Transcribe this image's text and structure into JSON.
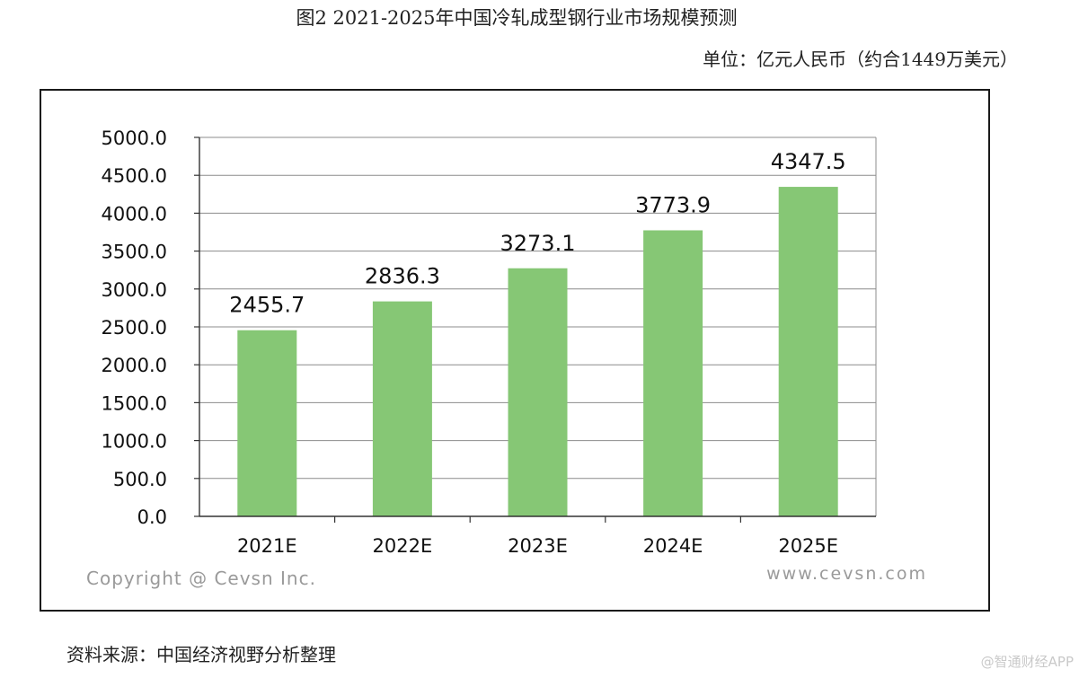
{
  "title": "图2 2021-2025年中国冷轧成型钢行业市场规模预测",
  "unit": "单位：亿元人民币（约合1449万美元）",
  "source": "资料来源：中国经济视野分析整理",
  "watermark": "@智通财经APP",
  "chart_data": {
    "type": "bar",
    "categories": [
      "2021E",
      "2022E",
      "2023E",
      "2024E",
      "2025E"
    ],
    "values": [
      2455.7,
      2836.3,
      3273.1,
      3773.9,
      4347.5
    ],
    "value_labels": [
      "2455.7",
      "2836.3",
      "3273.1",
      "3773.9",
      "4347.5"
    ],
    "yticks": [
      "0.0",
      "500.0",
      "1000.0",
      "1500.0",
      "2000.0",
      "2500.0",
      "3000.0",
      "3500.0",
      "4000.0",
      "4500.0",
      "5000.0"
    ],
    "ylim": [
      0,
      5000
    ],
    "grid": true,
    "legend": "none",
    "bar_color": "#86c775",
    "copyright": "Copyright @ Cevsn Inc.",
    "website": "www.cevsn.com"
  }
}
